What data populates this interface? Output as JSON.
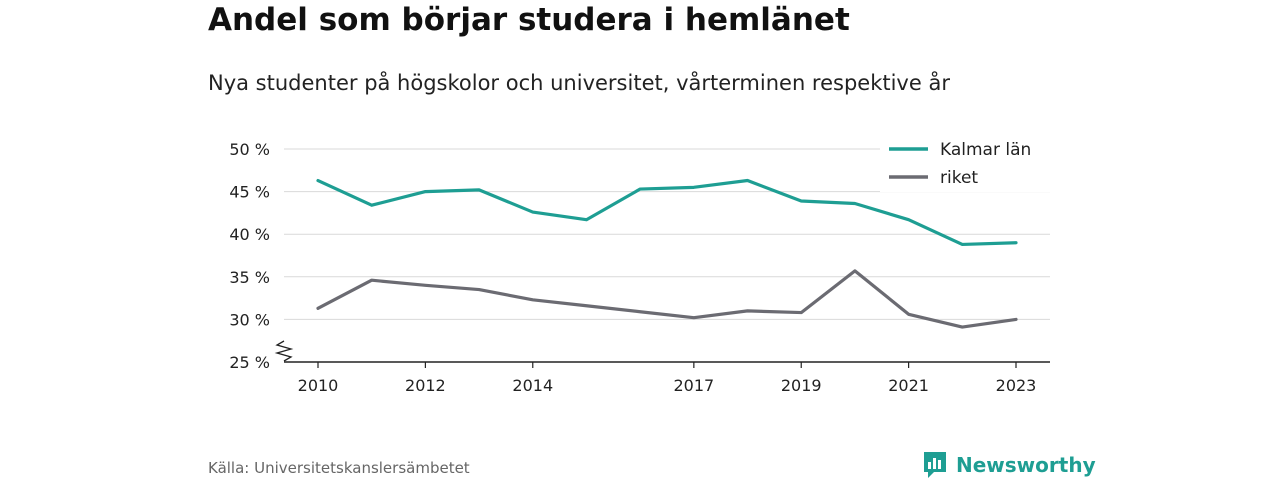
{
  "title": "Andel som börjar studera i hemlänet",
  "subtitle": "Nya studenter på högskolor och universitet, vårterminen respektive år",
  "source": "Källa: Universitetskanslersämbetet",
  "brand": {
    "name": "Newsworthy",
    "color": "#1e9e93",
    "icon": "newsworthy-logo-icon"
  },
  "chart_data": {
    "type": "line",
    "x": [
      2010,
      2011,
      2012,
      2013,
      2014,
      2015,
      2016,
      2017,
      2018,
      2019,
      2020,
      2021,
      2022,
      2023
    ],
    "x_tick_labels": [
      "2010",
      "2012",
      "2014",
      "2017",
      "2019",
      "2021",
      "2023"
    ],
    "x_tick_values": [
      2010,
      2012,
      2014,
      2017,
      2019,
      2021,
      2023
    ],
    "y_tick_labels": [
      "25 %",
      "30 %",
      "35 %",
      "40 %",
      "45 %",
      "50 %"
    ],
    "y_tick_values": [
      25,
      30,
      35,
      40,
      45,
      50
    ],
    "ylim": [
      25,
      50
    ],
    "y_axis_break": true,
    "grid": true,
    "legend_position": "top-right",
    "series": [
      {
        "name": "Kalmar län",
        "color": "#1e9e93",
        "values": [
          46.3,
          43.4,
          45.0,
          45.2,
          42.6,
          41.7,
          45.3,
          45.5,
          46.3,
          43.9,
          43.6,
          41.7,
          38.8,
          39.0
        ]
      },
      {
        "name": "riket",
        "color": "#6b6b72",
        "values": [
          31.3,
          34.6,
          34.0,
          33.5,
          32.3,
          31.6,
          30.9,
          30.2,
          31.0,
          30.8,
          35.7,
          30.6,
          29.1,
          30.0
        ]
      }
    ]
  }
}
